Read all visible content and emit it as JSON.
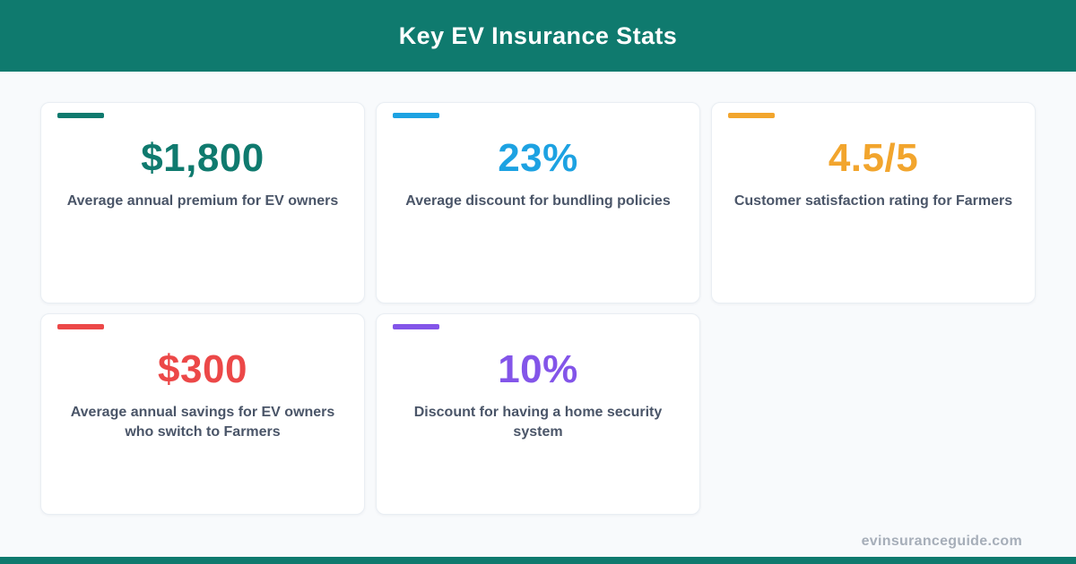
{
  "page": {
    "background": "#F8FAFC",
    "card_background": "#FFFFFF",
    "card_border_color": "#E9EEF3",
    "label_color": "#4A5568"
  },
  "header": {
    "title": "Key EV Insurance Stats",
    "background": "#0F7A6E",
    "text_color": "#FFFFFF"
  },
  "stats": [
    {
      "value": "$1,800",
      "label": "Average annual premium for EV owners",
      "accent_color": "#0F7A6E"
    },
    {
      "value": "23%",
      "label": "Average discount for bundling policies",
      "accent_color": "#1DA2E2"
    },
    {
      "value": "4.5/5",
      "label": "Customer satisfaction rating for Farmers",
      "accent_color": "#F2A52D"
    },
    {
      "value": "$300",
      "label": "Average annual savings for EV owners who switch to Farmers",
      "accent_color": "#EC4848"
    },
    {
      "value": "10%",
      "label": "Discount for having a home security system",
      "accent_color": "#8355E9"
    }
  ],
  "footer": {
    "website": "evinsuranceguide.com",
    "bar_color": "#0F7A6E",
    "text_color": "#A6AEB9"
  }
}
